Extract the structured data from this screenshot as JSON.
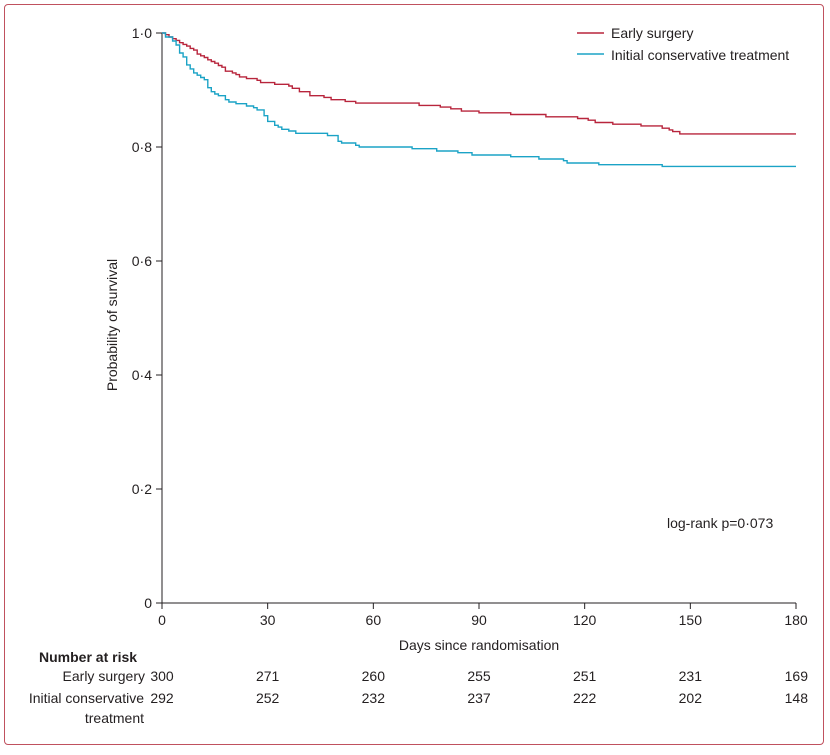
{
  "chart_data": {
    "type": "line",
    "subtype": "kaplan-meier",
    "title": "",
    "xlabel": "Days since randomisation",
    "ylabel": "Probability of survival",
    "xlim": [
      0,
      180
    ],
    "ylim": [
      0,
      1
    ],
    "xticks": [
      0,
      30,
      60,
      90,
      120,
      150,
      180
    ],
    "xtick_labels": [
      "0",
      "30",
      "60",
      "90",
      "120",
      "150",
      "180"
    ],
    "yticks": [
      0,
      0.2,
      0.4,
      0.6,
      0.8,
      1.0
    ],
    "ytick_labels": [
      "0",
      "0·2",
      "0·4",
      "0·6",
      "0·8",
      "1·0"
    ],
    "legend_position": "top-right",
    "annotation": "log-rank p=0·073",
    "series": [
      {
        "name": "Early surgery",
        "color": "#b8253c",
        "points": [
          [
            0,
            1.0
          ],
          [
            1,
            0.997
          ],
          [
            2,
            0.993
          ],
          [
            3,
            0.99
          ],
          [
            4,
            0.987
          ],
          [
            5,
            0.983
          ],
          [
            6,
            0.98
          ],
          [
            7,
            0.977
          ],
          [
            8,
            0.973
          ],
          [
            9,
            0.97
          ],
          [
            10,
            0.963
          ],
          [
            11,
            0.96
          ],
          [
            12,
            0.957
          ],
          [
            13,
            0.953
          ],
          [
            14,
            0.95
          ],
          [
            15,
            0.947
          ],
          [
            16,
            0.943
          ],
          [
            17,
            0.94
          ],
          [
            18,
            0.933
          ],
          [
            20,
            0.93
          ],
          [
            21,
            0.927
          ],
          [
            22,
            0.923
          ],
          [
            24,
            0.92
          ],
          [
            27,
            0.917
          ],
          [
            28,
            0.913
          ],
          [
            32,
            0.91
          ],
          [
            36,
            0.907
          ],
          [
            37,
            0.903
          ],
          [
            39,
            0.897
          ],
          [
            42,
            0.89
          ],
          [
            46,
            0.887
          ],
          [
            48,
            0.883
          ],
          [
            52,
            0.88
          ],
          [
            55,
            0.877
          ],
          [
            60,
            0.877
          ],
          [
            72,
            0.877
          ],
          [
            73,
            0.873
          ],
          [
            79,
            0.87
          ],
          [
            82,
            0.867
          ],
          [
            85,
            0.863
          ],
          [
            90,
            0.86
          ],
          [
            99,
            0.857
          ],
          [
            109,
            0.853
          ],
          [
            117,
            0.853
          ],
          [
            118,
            0.85
          ],
          [
            121,
            0.847
          ],
          [
            123,
            0.843
          ],
          [
            128,
            0.84
          ],
          [
            136,
            0.837
          ],
          [
            138,
            0.837
          ],
          [
            142,
            0.833
          ],
          [
            144,
            0.83
          ],
          [
            145,
            0.827
          ],
          [
            147,
            0.823
          ],
          [
            150,
            0.823
          ],
          [
            180,
            0.823
          ]
        ]
      },
      {
        "name": "Initial conservative treatment",
        "color": "#1ba3c6",
        "points": [
          [
            0,
            1.0
          ],
          [
            1,
            0.993
          ],
          [
            3,
            0.986
          ],
          [
            4,
            0.979
          ],
          [
            5,
            0.965
          ],
          [
            6,
            0.958
          ],
          [
            7,
            0.944
          ],
          [
            8,
            0.937
          ],
          [
            9,
            0.93
          ],
          [
            10,
            0.926
          ],
          [
            11,
            0.922
          ],
          [
            12,
            0.918
          ],
          [
            13,
            0.904
          ],
          [
            14,
            0.897
          ],
          [
            15,
            0.893
          ],
          [
            16,
            0.89
          ],
          [
            18,
            0.883
          ],
          [
            19,
            0.879
          ],
          [
            21,
            0.876
          ],
          [
            24,
            0.872
          ],
          [
            26,
            0.869
          ],
          [
            27,
            0.865
          ],
          [
            29,
            0.855
          ],
          [
            30,
            0.845
          ],
          [
            31,
            0.845
          ],
          [
            32,
            0.838
          ],
          [
            33,
            0.835
          ],
          [
            34,
            0.831
          ],
          [
            36,
            0.828
          ],
          [
            38,
            0.824
          ],
          [
            47,
            0.82
          ],
          [
            50,
            0.81
          ],
          [
            51,
            0.807
          ],
          [
            54,
            0.807
          ],
          [
            55,
            0.803
          ],
          [
            56,
            0.8
          ],
          [
            71,
            0.797
          ],
          [
            72,
            0.797
          ],
          [
            78,
            0.793
          ],
          [
            83,
            0.793
          ],
          [
            84,
            0.79
          ],
          [
            88,
            0.786
          ],
          [
            98,
            0.786
          ],
          [
            99,
            0.783
          ],
          [
            107,
            0.779
          ],
          [
            109,
            0.779
          ],
          [
            114,
            0.776
          ],
          [
            115,
            0.772
          ],
          [
            124,
            0.769
          ],
          [
            130,
            0.769
          ],
          [
            142,
            0.766
          ],
          [
            150,
            0.766
          ],
          [
            180,
            0.766
          ]
        ]
      }
    ],
    "risk_table": {
      "title": "Number at risk",
      "columns": [
        0,
        30,
        60,
        90,
        120,
        150,
        180
      ],
      "rows": [
        {
          "label": "Early surgery",
          "values": [
            300,
            271,
            260,
            255,
            251,
            231,
            169
          ]
        },
        {
          "label_line1": "Initial conservative",
          "label_line2": "treatment",
          "values": [
            292,
            252,
            232,
            237,
            222,
            202,
            148
          ]
        }
      ]
    }
  }
}
